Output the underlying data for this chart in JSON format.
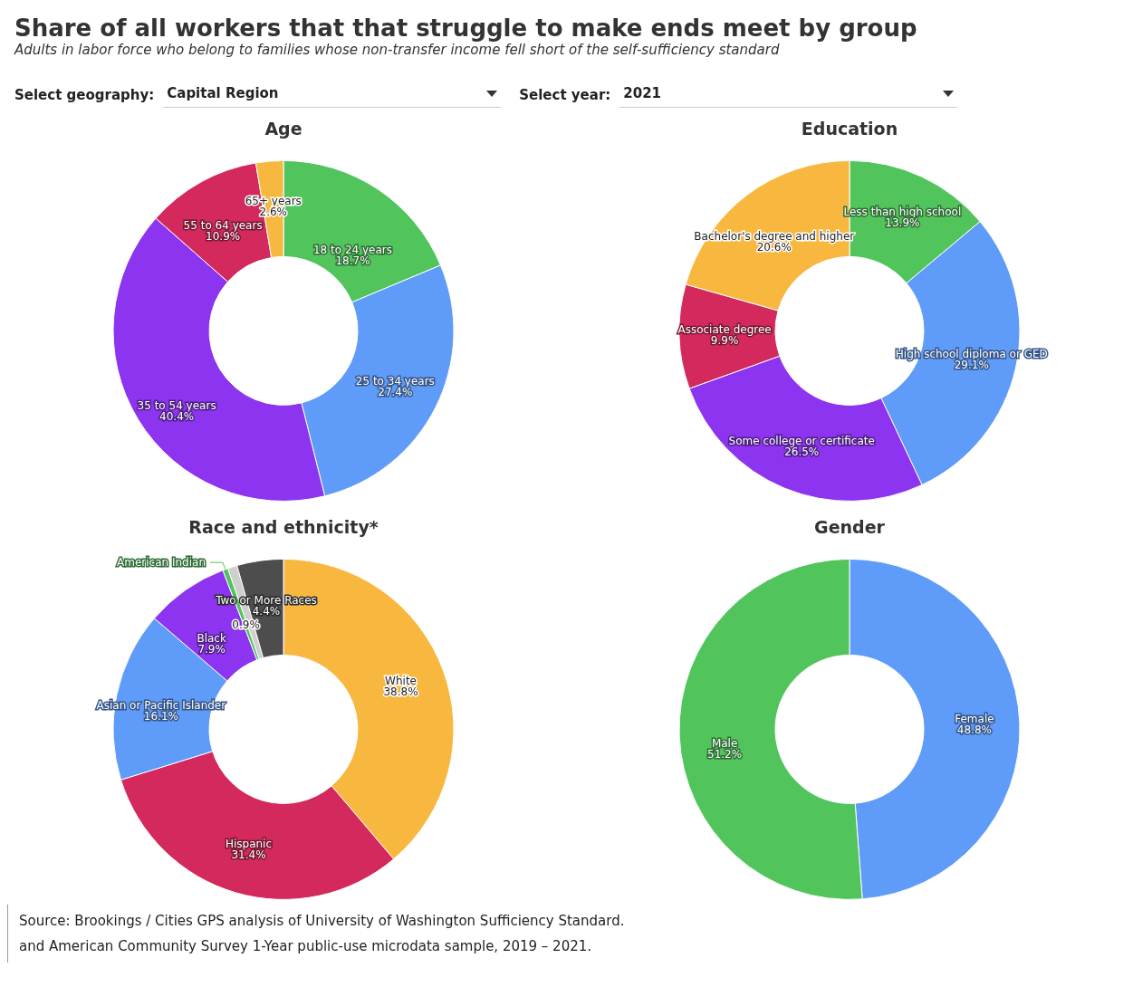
{
  "chart_data": [
    {
      "type": "other",
      "title": "Share of all workers that that struggle to make ends meet by group",
      "subtitle": "Adults in labor force who belong to families whose non-transfer income fell short of the self-sufficiency standard",
      "annotations": [
        "Select geography:",
        "Capital Region",
        "Select year:",
        "2021"
      ]
    },
    {
      "type": "donut",
      "title": "Age",
      "categories": [
        "18 to 24 years",
        "25 to 34 years",
        "35 to 54 years",
        "55 to 64 years",
        "65+ years"
      ],
      "values": [
        18.7,
        27.4,
        40.4,
        10.9,
        2.6
      ],
      "colors": [
        "#52c45c",
        "#5f9bf8",
        "#8c34ef",
        "#d3295c",
        "#f8b840"
      ],
      "value_labels": [
        "18.7%",
        "27.4%",
        "40.4%",
        "10.9%",
        "2.6%"
      ]
    },
    {
      "type": "donut",
      "title": "Education",
      "categories": [
        "Less than high school",
        "High school diploma or GED",
        "Some college or certificate",
        "Associate degree",
        "Bachelor's degree and higher"
      ],
      "values": [
        13.9,
        29.1,
        26.5,
        9.9,
        20.6
      ],
      "colors": [
        "#52c45c",
        "#5f9bf8",
        "#8c34ef",
        "#d3295c",
        "#f8b840"
      ],
      "value_labels": [
        "13.9%",
        "29.1%",
        "26.5%",
        "9.9%",
        "20.6%"
      ]
    },
    {
      "type": "donut",
      "title": "Race and ethnicity*",
      "categories": [
        "White",
        "Hispanic",
        "Asian or Pacific Islander",
        "Black",
        "American Indian",
        null,
        "Two or More Races"
      ],
      "values": [
        38.8,
        31.4,
        16.1,
        7.9,
        0.5,
        0.9,
        4.4
      ],
      "colors": [
        "#f8b840",
        "#d3295c",
        "#5f9bf8",
        "#8c34ef",
        "#52c45c",
        "#cfcfcf",
        "#4d4d4d"
      ],
      "value_labels": [
        "38.8%",
        "31.4%",
        "16.1%",
        "7.9%",
        null,
        "0.9%",
        "4.4%"
      ]
    },
    {
      "type": "donut",
      "title": "Gender",
      "categories": [
        "Female",
        "Male"
      ],
      "values": [
        48.8,
        51.2
      ],
      "colors": [
        "#5f9bf8",
        "#52c45c"
      ],
      "value_labels": [
        "48.8%",
        "51.2%"
      ]
    },
    {
      "type": "other",
      "annotations": [
        "Source: Brookings / Cities GPS analysis of University of Washington Sufficiency Standard.",
        "and American Community Survey 1-Year public-use microdata sample, 2019 – 2021."
      ]
    }
  ]
}
